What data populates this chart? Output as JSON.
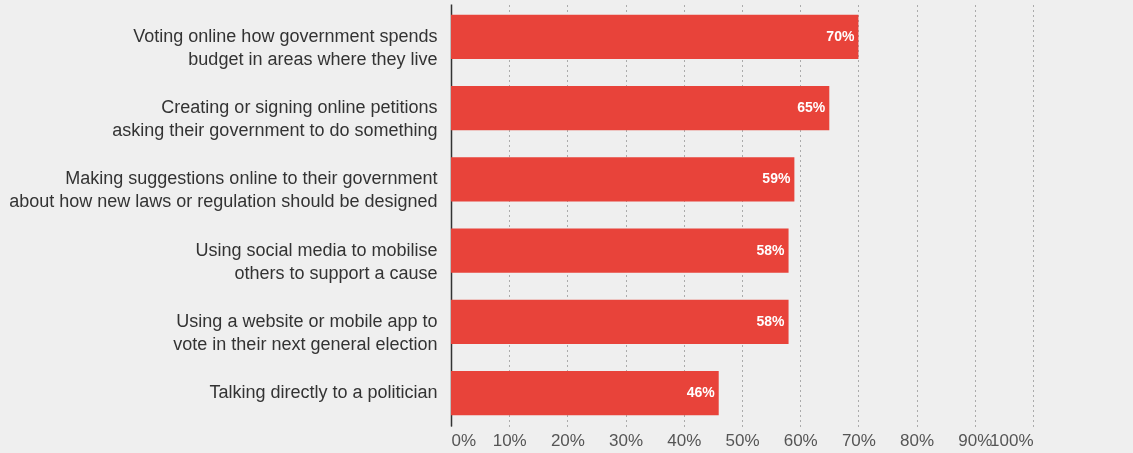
{
  "chart_data": {
    "type": "bar",
    "orientation": "horizontal",
    "categories": [
      "Voting online how government spends budget in areas where they live",
      "Creating or signing online petitions asking their government to do something",
      "Making suggestions online to their government about how new laws or regulation should be designed",
      "Using social media to mobilise others to support a cause",
      "Using a website or mobile app to vote in their next general election",
      "Talking directly to a politician"
    ],
    "values": [
      70,
      65,
      59,
      58,
      58,
      46
    ],
    "value_labels": [
      "70%",
      "65%",
      "59%",
      "58%",
      "58%",
      "46%"
    ],
    "color": "#e8433a",
    "xlim": [
      0,
      100
    ],
    "xticks": [
      {
        "value": 0,
        "label": "0%"
      },
      {
        "value": 10,
        "label": "10%"
      },
      {
        "value": 20,
        "label": "20%"
      },
      {
        "value": 30,
        "label": "30%"
      },
      {
        "value": 40,
        "label": "40%"
      },
      {
        "value": 50,
        "label": "50%"
      },
      {
        "value": 60,
        "label": "60%"
      },
      {
        "value": 70,
        "label": "70%"
      },
      {
        "value": 80,
        "label": "80%"
      },
      {
        "value": 90,
        "label": "90%"
      },
      {
        "value": 100,
        "label": "100%"
      }
    ],
    "grid": "x"
  }
}
